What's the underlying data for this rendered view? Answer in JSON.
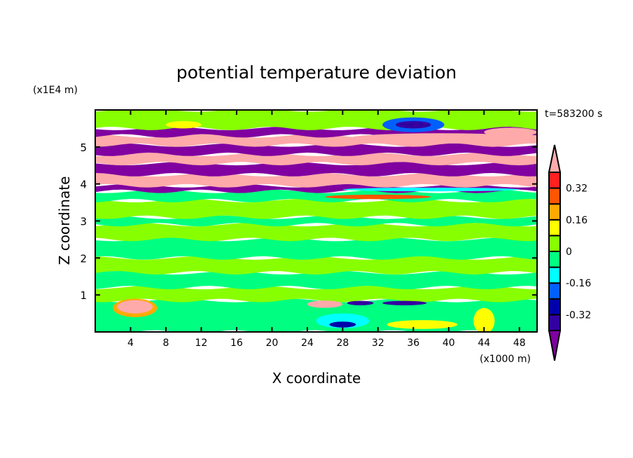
{
  "chart_data": {
    "type": "heatmap",
    "title": "potential temperature deviation",
    "xlabel": "X coordinate",
    "ylabel": "Z coordinate",
    "x_unit": "(x1000 m)",
    "y_unit": "(x1E4 m)",
    "time_label": "t=583200 s",
    "xlim": [
      0,
      50
    ],
    "ylim": [
      0,
      6
    ],
    "xticks": [
      4,
      8,
      12,
      16,
      20,
      24,
      28,
      32,
      36,
      40,
      44,
      48
    ],
    "yticks": [
      1,
      2,
      3,
      4,
      5
    ],
    "colorbar": {
      "levels": [
        -0.4,
        -0.32,
        -0.24,
        -0.16,
        -0.08,
        0,
        0.08,
        0.16,
        0.24,
        0.32,
        0.4
      ],
      "colors": [
        "#3300a0",
        "#0000aa",
        "#0060ff",
        "#00ffff",
        "#00ff80",
        "#88ff00",
        "#ffff00",
        "#ffaa00",
        "#ff5500",
        "#ff2020"
      ],
      "under_color": "#8000a0",
      "over_color": "#ffaaaa",
      "tick_labels": [
        "-0.32",
        "-0.16",
        "0",
        "0.16",
        "0.32"
      ],
      "tick_values": [
        -0.32,
        -0.16,
        0,
        0.16,
        0.32
      ]
    },
    "field_bands": [
      {
        "z0": 0,
        "z1": 0.85,
        "color": "#00ff80"
      },
      {
        "z0": 0.85,
        "z1": 1.2,
        "color": "#88ff00"
      },
      {
        "z0": 1.2,
        "z1": 1.6,
        "color": "#00ff80"
      },
      {
        "z0": 1.6,
        "z1": 2.0,
        "color": "#88ff00"
      },
      {
        "z0": 2.0,
        "z1": 2.5,
        "color": "#00ff80"
      },
      {
        "z0": 2.5,
        "z1": 2.9,
        "color": "#88ff00"
      },
      {
        "z0": 2.9,
        "z1": 3.1,
        "color": "#00ff80"
      },
      {
        "z0": 3.1,
        "z1": 3.55,
        "color": "#88ff00"
      },
      {
        "z0": 3.55,
        "z1": 3.8,
        "color": "#00ff80"
      },
      {
        "z0": 3.8,
        "z1": 3.95,
        "color": "#8000a0"
      },
      {
        "z0": 3.95,
        "z1": 4.25,
        "color": "#ffaaaa"
      },
      {
        "z0": 4.25,
        "z1": 4.55,
        "color": "#8000a0"
      },
      {
        "z0": 4.55,
        "z1": 4.8,
        "color": "#ffaaaa"
      },
      {
        "z0": 4.8,
        "z1": 5.05,
        "color": "#8000a0"
      },
      {
        "z0": 5.05,
        "z1": 5.3,
        "color": "#ffaaaa"
      },
      {
        "z0": 5.3,
        "z1": 5.5,
        "color": "#8000a0"
      },
      {
        "z0": 5.5,
        "z1": 6,
        "color": "#88ff00"
      }
    ],
    "field_blobs": [
      {
        "x": 4.5,
        "z": 0.65,
        "rx": 2.5,
        "rz": 0.25,
        "color": "#ffaa00"
      },
      {
        "x": 4.5,
        "z": 0.68,
        "rx": 2,
        "rz": 0.18,
        "color": "#ffaaaa"
      },
      {
        "x": 26,
        "z": 0.75,
        "rx": 2,
        "rz": 0.1,
        "color": "#ffaaaa"
      },
      {
        "x": 30,
        "z": 0.78,
        "rx": 1.5,
        "rz": 0.06,
        "color": "#3300a0"
      },
      {
        "x": 35,
        "z": 0.78,
        "rx": 2.5,
        "rz": 0.06,
        "color": "#3300a0"
      },
      {
        "x": 28,
        "z": 0.3,
        "rx": 3,
        "rz": 0.2,
        "color": "#00ffff"
      },
      {
        "x": 28,
        "z": 0.2,
        "rx": 1.5,
        "rz": 0.08,
        "color": "#0000aa"
      },
      {
        "x": 44,
        "z": 0.3,
        "rx": 1.2,
        "rz": 0.35,
        "color": "#ffff00"
      },
      {
        "x": 37,
        "z": 0.2,
        "rx": 4,
        "rz": 0.12,
        "color": "#ffff00"
      },
      {
        "x": 36,
        "z": 5.6,
        "rx": 3.5,
        "rz": 0.2,
        "color": "#0060ff"
      },
      {
        "x": 36,
        "z": 5.6,
        "rx": 2,
        "rz": 0.1,
        "color": "#3300a0"
      },
      {
        "x": 47,
        "z": 5.4,
        "rx": 3,
        "rz": 0.12,
        "color": "#ffaaaa"
      },
      {
        "x": 39,
        "z": 5.25,
        "rx": 10,
        "rz": 0.12,
        "color": "#ffaaaa"
      },
      {
        "x": 32,
        "z": 3.65,
        "rx": 6,
        "rz": 0.06,
        "color": "#ff5500"
      },
      {
        "x": 38,
        "z": 3.85,
        "rx": 10,
        "rz": 0.05,
        "color": "#00ffff"
      },
      {
        "x": 10,
        "z": 5.6,
        "rx": 2,
        "rz": 0.1,
        "color": "#ffff00"
      }
    ]
  }
}
